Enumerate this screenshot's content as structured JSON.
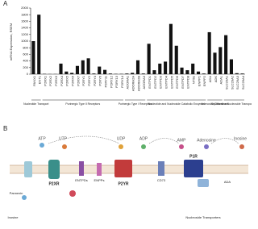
{
  "chart_data": {
    "type": "bar",
    "panel": "A",
    "y_label": "mRNA Expression, RSEM",
    "categories": [
      "PANX1",
      "ENT1",
      "P2RX1",
      "P2RX2",
      "P2RX3",
      "P2RX4",
      "P2RX5",
      "P2RX6",
      "P2RX7",
      "P2RY1",
      "P2RY2",
      "P2RY4",
      "P2RY6",
      "P2RY11",
      "P2RY12",
      "P2RY13",
      "P2RY14",
      "ADORA1",
      "ADORA2A",
      "ADORA2B",
      "ADORA3",
      "ENTPD1",
      "ENTPD2",
      "ENTPD3",
      "ENTPD4",
      "ENTPD5",
      "ENTPD6",
      "ENTPD7",
      "ENTPD8",
      "NT5E",
      "ENPP1",
      "ENPP2",
      "ADA",
      "ADK",
      "ADAL",
      "SLC29A1",
      "SLC29A2",
      "SLC29A3",
      "SLC29A4"
    ],
    "values": [
      1000,
      1800,
      10,
      5,
      5,
      320,
      80,
      40,
      250,
      420,
      480,
      20,
      230,
      130,
      20,
      10,
      10,
      20,
      40,
      420,
      20,
      920,
      120,
      320,
      380,
      1520,
      860,
      200,
      120,
      320,
      80,
      20,
      1270,
      650,
      820,
      1180,
      450,
      30,
      20
    ],
    "color": "#111111",
    "groups": [
      "Nucleotide Transport",
      "Purinergic Type II Receptors",
      "Purinergic Type I Receptors",
      "Nucleotide and Nucleoside Catabolic Enzymes",
      "Adenosine Deaminase",
      "Equilibrative Nucleoside Transporters"
    ],
    "ylim": [
      0,
      2000
    ],
    "yticks": [
      0,
      200,
      400,
      600,
      800,
      1000,
      1200,
      1400,
      1600,
      1800,
      2000
    ]
  },
  "diagram": {
    "panel": "B",
    "labels": [
      "ATP",
      "UTP",
      "UDP",
      "ADP",
      "AMP",
      "Adenosine",
      "Inosine",
      "Pannexin",
      "P2XR",
      "P2YR",
      "ENTPDs",
      "ENPPs",
      "CD73",
      "P1R",
      "ADA",
      "Nucleoside Transporters",
      "Inosine"
    ]
  }
}
